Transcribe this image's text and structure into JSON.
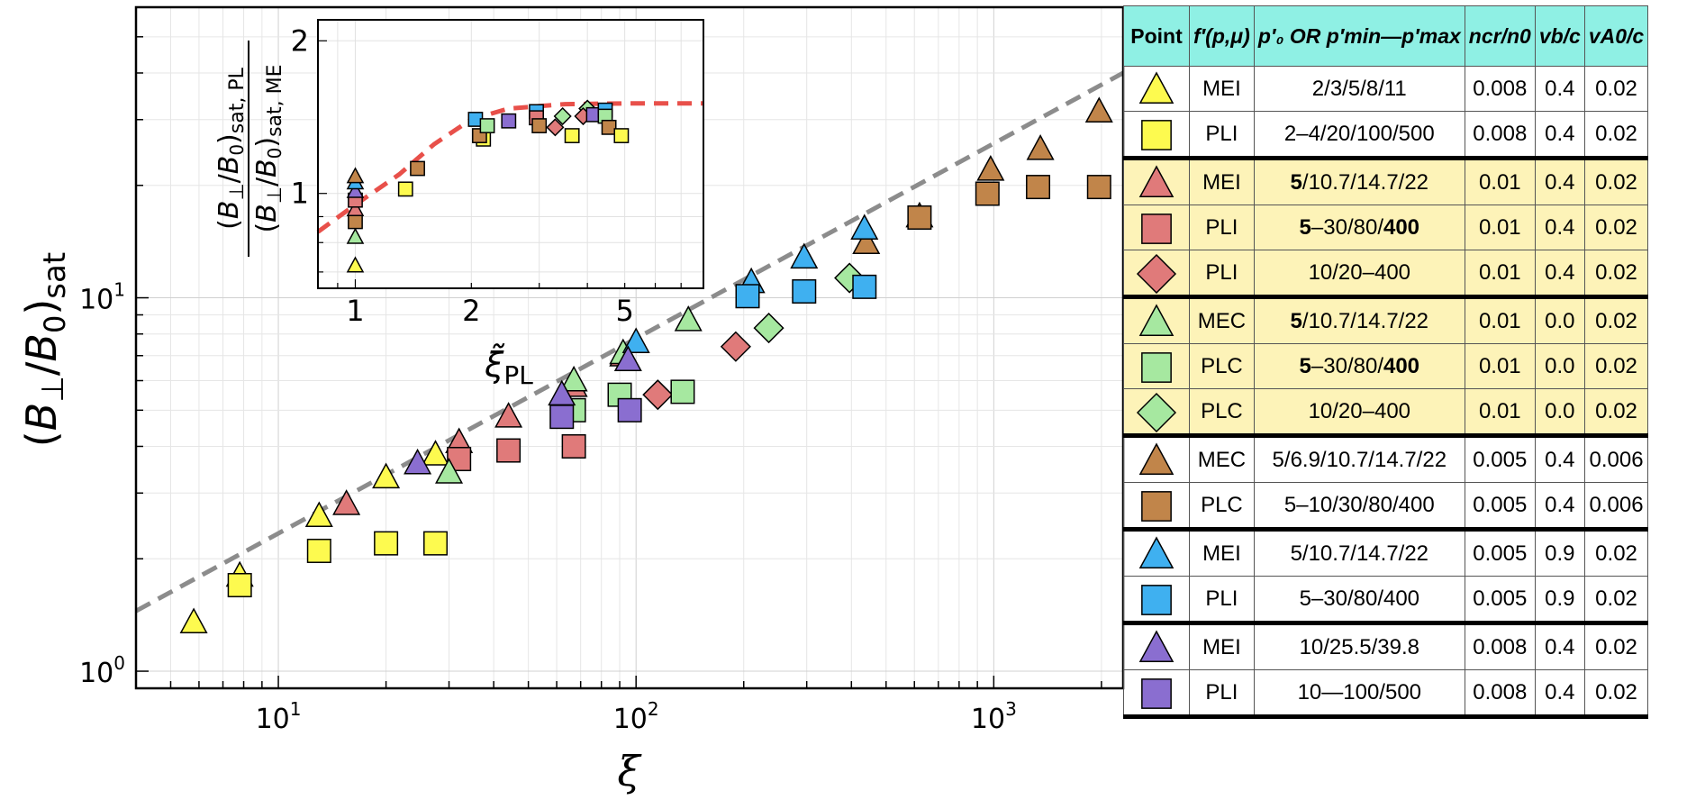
{
  "chart_data": {
    "type": "scatter",
    "main": {
      "xlabel": "ξ",
      "ylabel": "(B⊥/B0)sat",
      "xscale": "log",
      "yscale": "log",
      "xlim": [
        4.0,
        2300
      ],
      "ylim": [
        0.9,
        60
      ],
      "xticks": [
        {
          "value": 10,
          "base": "10",
          "exp": "1"
        },
        {
          "value": 100,
          "base": "10",
          "exp": "2"
        },
        {
          "value": 1000,
          "base": "10",
          "exp": "3"
        }
      ],
      "yticks": [
        {
          "value": 1,
          "base": "10",
          "exp": "0"
        },
        {
          "value": 10,
          "base": "10",
          "exp": "1"
        }
      ],
      "fit_line": {
        "style": "dashed",
        "color": "#8c8c8c",
        "points": [
          [
            4.0,
            1.45
          ],
          [
            2300,
            40.0
          ]
        ]
      },
      "series": [
        {
          "id": "s1",
          "marker": "triangle",
          "color": "#fdfa4f",
          "points": [
            [
              5.8,
              1.35
            ],
            [
              7.8,
              1.8
            ],
            [
              13,
              2.6
            ],
            [
              20,
              3.3
            ],
            [
              27.5,
              3.8
            ]
          ]
        },
        {
          "id": "s2",
          "marker": "square",
          "color": "#fdfa4f",
          "points": [
            [
              7.8,
              1.7
            ],
            [
              13,
              2.1
            ],
            [
              20,
              2.2
            ],
            [
              27.5,
              2.2
            ]
          ]
        },
        {
          "id": "s3",
          "marker": "triangle",
          "color": "#e07a7a",
          "points": [
            [
              15.5,
              2.8
            ],
            [
              32,
              4.1
            ],
            [
              44,
              4.8
            ],
            [
              67,
              5.8
            ],
            [
              92,
              7.0
            ]
          ]
        },
        {
          "id": "s4",
          "marker": "square",
          "color": "#e07a7a",
          "points": [
            [
              32,
              3.7
            ],
            [
              44,
              3.9
            ],
            [
              67,
              4.0
            ]
          ]
        },
        {
          "id": "s5",
          "marker": "diamond",
          "color": "#e07a7a",
          "points": [
            [
              115,
              5.5
            ],
            [
              190,
              7.4
            ]
          ]
        },
        {
          "id": "s6",
          "marker": "triangle",
          "color": "#a6e8a0",
          "points": [
            [
              30,
              3.4
            ],
            [
              67,
              6.0
            ],
            [
              92,
              7.1
            ],
            [
              140,
              8.7
            ]
          ]
        },
        {
          "id": "s7",
          "marker": "square",
          "color": "#a6e8a0",
          "points": [
            [
              67,
              5.0
            ],
            [
              90,
              5.5
            ],
            [
              135,
              5.6
            ]
          ]
        },
        {
          "id": "s8",
          "marker": "diamond",
          "color": "#a6e8a0",
          "points": [
            [
              235,
              8.3
            ],
            [
              395,
              11.3
            ]
          ]
        },
        {
          "id": "s9",
          "marker": "triangle",
          "color": "#c1854a",
          "points": [
            [
              440,
              14.0
            ],
            [
              620,
              16.5
            ],
            [
              980,
              22.0
            ],
            [
              1350,
              25.0
            ],
            [
              1970,
              31.5
            ]
          ]
        },
        {
          "id": "s10",
          "marker": "square",
          "color": "#c1854a",
          "points": [
            [
              620,
              16.4
            ],
            [
              960,
              19.0
            ],
            [
              1330,
              19.8
            ],
            [
              1970,
              19.8
            ]
          ]
        },
        {
          "id": "s11",
          "marker": "triangle",
          "color": "#3fb0f0",
          "points": [
            [
              100,
              7.6
            ],
            [
              210,
              11.0
            ],
            [
              295,
              12.8
            ],
            [
              435,
              15.3
            ]
          ]
        },
        {
          "id": "s12",
          "marker": "square",
          "color": "#3fb0f0",
          "points": [
            [
              205,
              10.1
            ],
            [
              295,
              10.4
            ],
            [
              435,
              10.7
            ]
          ]
        },
        {
          "id": "s13",
          "marker": "triangle",
          "color": "#8a6ed0",
          "points": [
            [
              24.5,
              3.6
            ],
            [
              62,
              5.5
            ],
            [
              95,
              6.8
            ]
          ]
        },
        {
          "id": "s14",
          "marker": "square",
          "color": "#8a6ed0",
          "points": [
            [
              62,
              4.8
            ],
            [
              96,
              5.0
            ]
          ]
        }
      ]
    },
    "inset": {
      "xlabel": "ξ̃PL",
      "ylabel_numerator": "(B⊥/B0)sat, PL",
      "ylabel_denominator": "(B⊥/B0)sat, ME",
      "xscale": "log",
      "yscale": "log",
      "xlim": [
        0.8,
        8.0
      ],
      "ylim": [
        0.65,
        2.2
      ],
      "xticks": [
        {
          "value": 1,
          "label": "1"
        },
        {
          "value": 2,
          "label": "2"
        },
        {
          "value": 5,
          "label": "5"
        }
      ],
      "yticks": [
        {
          "value": 1,
          "label": "1"
        },
        {
          "value": 2,
          "label": "2"
        }
      ],
      "fit_curve": {
        "style": "dashed",
        "color": "#e8504a",
        "points": [
          [
            0.8,
            0.84
          ],
          [
            1.0,
            0.95
          ],
          [
            1.3,
            1.09
          ],
          [
            1.6,
            1.25
          ],
          [
            2.0,
            1.4
          ],
          [
            2.5,
            1.47
          ],
          [
            3.5,
            1.5
          ],
          [
            5.0,
            1.505
          ],
          [
            8.0,
            1.505
          ]
        ]
      },
      "points": [
        {
          "x": 1.0,
          "y": 0.72,
          "marker": "triangle",
          "color": "#fdfa4f"
        },
        {
          "x": 1.0,
          "y": 0.82,
          "marker": "triangle",
          "color": "#a6e8a0"
        },
        {
          "x": 1.0,
          "y": 0.88,
          "marker": "square",
          "color": "#c1854a"
        },
        {
          "x": 1.0,
          "y": 0.93,
          "marker": "triangle",
          "color": "#e07a7a"
        },
        {
          "x": 1.0,
          "y": 0.97,
          "marker": "square",
          "color": "#e07a7a"
        },
        {
          "x": 1.0,
          "y": 1.01,
          "marker": "triangle",
          "color": "#8a6ed0"
        },
        {
          "x": 1.0,
          "y": 1.05,
          "marker": "triangle",
          "color": "#3fb0f0"
        },
        {
          "x": 1.0,
          "y": 1.08,
          "marker": "triangle",
          "color": "#c1854a"
        },
        {
          "x": 1.35,
          "y": 1.02,
          "marker": "square",
          "color": "#fdfa4f"
        },
        {
          "x": 1.45,
          "y": 1.12,
          "marker": "square",
          "color": "#c1854a"
        },
        {
          "x": 2.05,
          "y": 1.4,
          "marker": "square",
          "color": "#3fb0f0"
        },
        {
          "x": 2.15,
          "y": 1.28,
          "marker": "square",
          "color": "#fdfa4f"
        },
        {
          "x": 2.1,
          "y": 1.3,
          "marker": "square",
          "color": "#c1854a"
        },
        {
          "x": 2.2,
          "y": 1.36,
          "marker": "square",
          "color": "#a6e8a0"
        },
        {
          "x": 2.5,
          "y": 1.39,
          "marker": "square",
          "color": "#8a6ed0"
        },
        {
          "x": 2.95,
          "y": 1.45,
          "marker": "square",
          "color": "#3fb0f0"
        },
        {
          "x": 2.95,
          "y": 1.41,
          "marker": "square",
          "color": "#e07a7a"
        },
        {
          "x": 3.0,
          "y": 1.36,
          "marker": "square",
          "color": "#c1854a"
        },
        {
          "x": 3.3,
          "y": 1.35,
          "marker": "diamond",
          "color": "#e07a7a"
        },
        {
          "x": 3.45,
          "y": 1.42,
          "marker": "diamond",
          "color": "#a6e8a0"
        },
        {
          "x": 3.65,
          "y": 1.3,
          "marker": "square",
          "color": "#fdfa4f"
        },
        {
          "x": 4.0,
          "y": 1.47,
          "marker": "diamond",
          "color": "#a6e8a0"
        },
        {
          "x": 3.9,
          "y": 1.42,
          "marker": "diamond",
          "color": "#e07a7a"
        },
        {
          "x": 4.15,
          "y": 1.43,
          "marker": "square",
          "color": "#8a6ed0"
        },
        {
          "x": 4.45,
          "y": 1.46,
          "marker": "square",
          "color": "#3fb0f0"
        },
        {
          "x": 4.45,
          "y": 1.42,
          "marker": "square",
          "color": "#a6e8a0"
        },
        {
          "x": 4.55,
          "y": 1.35,
          "marker": "square",
          "color": "#c1854a"
        },
        {
          "x": 4.9,
          "y": 1.3,
          "marker": "square",
          "color": "#fdfa4f"
        }
      ]
    }
  },
  "legend_table": {
    "headers": {
      "point": "Point",
      "fprime": "f′(p,μ)",
      "p_range": "p′₀ OR p′min—p′max",
      "ncr": "ncr/n0",
      "vb": "vb/c",
      "va": "vA0/c"
    },
    "rows": [
      {
        "marker": "triangle",
        "color": "#fdfa4f",
        "f": "MEI",
        "p_pre": "",
        "p_bold": "",
        "p_rest": "2/3/5/8/11",
        "p_bold2": "",
        "ncr": "0.008",
        "vb": "0.4",
        "va": "0.02",
        "highlight": false,
        "group_start": false
      },
      {
        "marker": "square",
        "color": "#fdfa4f",
        "f": "PLI",
        "p_pre": "",
        "p_bold": "",
        "p_rest": "2–4/20/100/500",
        "p_bold2": "",
        "ncr": "0.008",
        "vb": "0.4",
        "va": "0.02",
        "highlight": false,
        "group_start": false
      },
      {
        "marker": "triangle",
        "color": "#e07a7a",
        "f": "MEI",
        "p_pre": "",
        "p_bold": "5",
        "p_rest": "/10.7/14.7/22",
        "p_bold2": "",
        "ncr": "0.01",
        "vb": "0.4",
        "va": "0.02",
        "highlight": true,
        "group_start": true
      },
      {
        "marker": "square",
        "color": "#e07a7a",
        "f": "PLI",
        "p_pre": "",
        "p_bold": "5",
        "p_rest": "–30/80/",
        "p_bold2": "400",
        "ncr": "0.01",
        "vb": "0.4",
        "va": "0.02",
        "highlight": true,
        "group_start": false
      },
      {
        "marker": "diamond",
        "color": "#e07a7a",
        "f": "PLI",
        "p_pre": "",
        "p_bold": "",
        "p_rest": "10/20–400",
        "p_bold2": "",
        "ncr": "0.01",
        "vb": "0.4",
        "va": "0.02",
        "highlight": true,
        "group_start": false
      },
      {
        "marker": "triangle",
        "color": "#a6e8a0",
        "f": "MEC",
        "p_pre": "",
        "p_bold": "5",
        "p_rest": "/10.7/14.7/22",
        "p_bold2": "",
        "ncr": "0.01",
        "vb": "0.0",
        "va": "0.02",
        "highlight": true,
        "group_start": true
      },
      {
        "marker": "square",
        "color": "#a6e8a0",
        "f": "PLC",
        "p_pre": "",
        "p_bold": "5",
        "p_rest": "–30/80/",
        "p_bold2": "400",
        "ncr": "0.01",
        "vb": "0.0",
        "va": "0.02",
        "highlight": true,
        "group_start": false
      },
      {
        "marker": "diamond",
        "color": "#a6e8a0",
        "f": "PLC",
        "p_pre": "",
        "p_bold": "",
        "p_rest": "10/20–400",
        "p_bold2": "",
        "ncr": "0.01",
        "vb": "0.0",
        "va": "0.02",
        "highlight": true,
        "group_start": false
      },
      {
        "marker": "triangle",
        "color": "#c1854a",
        "f": "MEC",
        "p_pre": "",
        "p_bold": "",
        "p_rest": "5/6.9/10.7/14.7/22",
        "p_bold2": "",
        "ncr": "0.005",
        "vb": "0.4",
        "va": "0.006",
        "highlight": false,
        "group_start": true
      },
      {
        "marker": "square",
        "color": "#c1854a",
        "f": "PLC",
        "p_pre": "",
        "p_bold": "",
        "p_rest": "5–10/30/80/400",
        "p_bold2": "",
        "ncr": "0.005",
        "vb": "0.4",
        "va": "0.006",
        "highlight": false,
        "group_start": false
      },
      {
        "marker": "triangle",
        "color": "#3fb0f0",
        "f": "MEI",
        "p_pre": "",
        "p_bold": "",
        "p_rest": "5/10.7/14.7/22",
        "p_bold2": "",
        "ncr": "0.005",
        "vb": "0.9",
        "va": "0.02",
        "highlight": false,
        "group_start": true
      },
      {
        "marker": "square",
        "color": "#3fb0f0",
        "f": "PLI",
        "p_pre": "",
        "p_bold": "",
        "p_rest": "5–30/80/400",
        "p_bold2": "",
        "ncr": "0.005",
        "vb": "0.9",
        "va": "0.02",
        "highlight": false,
        "group_start": false
      },
      {
        "marker": "triangle",
        "color": "#8a6ed0",
        "f": "MEI",
        "p_pre": "",
        "p_bold": "",
        "p_rest": "10/25.5/39.8",
        "p_bold2": "",
        "ncr": "0.008",
        "vb": "0.4",
        "va": "0.02",
        "highlight": false,
        "group_start": true
      },
      {
        "marker": "square",
        "color": "#8a6ed0",
        "f": "PLI",
        "p_pre": "",
        "p_bold": "",
        "p_rest": "10—100/500",
        "p_bold2": "",
        "ncr": "0.008",
        "vb": "0.4",
        "va": "0.02",
        "highlight": false,
        "group_start": false
      }
    ]
  }
}
